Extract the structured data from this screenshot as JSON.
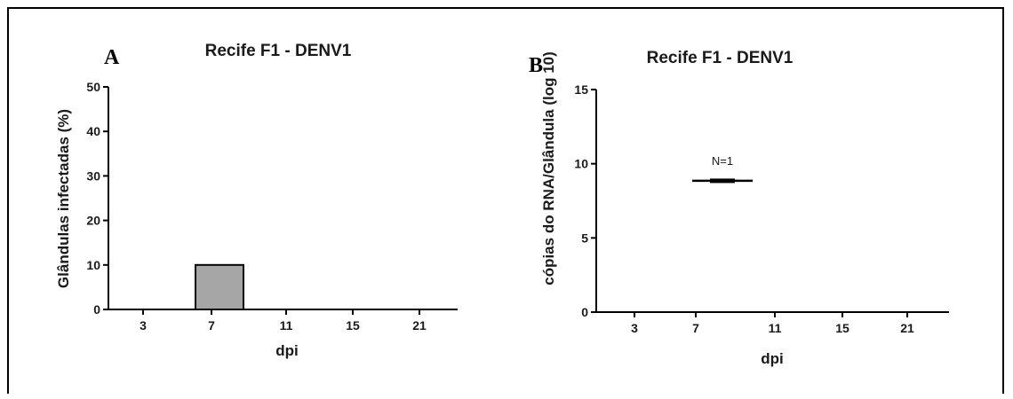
{
  "chart_data": [
    {
      "panel_label": "A",
      "type": "bar",
      "title": "Recife F1 - DENV1",
      "xlabel": "dpi",
      "ylabel": "Glândulas infectadas (%)",
      "categories": [
        "3",
        "7",
        "11",
        "15",
        "21"
      ],
      "values": [
        0,
        10,
        0,
        0,
        0
      ],
      "ylim": [
        0,
        50
      ],
      "yticks": [
        0,
        10,
        20,
        30,
        40,
        50
      ],
      "bar_color": "#a6a6a6",
      "grid": false
    },
    {
      "panel_label": "B",
      "type": "scatter",
      "title": "Recife F1 - DENV1",
      "xlabel": "dpi",
      "ylabel": "cópias do RNA/Glândula (log 10)",
      "categories": [
        "3",
        "7",
        "11",
        "15",
        "21"
      ],
      "points": [
        {
          "x": "7",
          "y": 8.85
        }
      ],
      "annotations": [
        {
          "x": "7",
          "text": "N=1"
        }
      ],
      "ylim": [
        0,
        15
      ],
      "yticks": [
        0,
        5,
        10,
        15
      ],
      "grid": false
    }
  ]
}
